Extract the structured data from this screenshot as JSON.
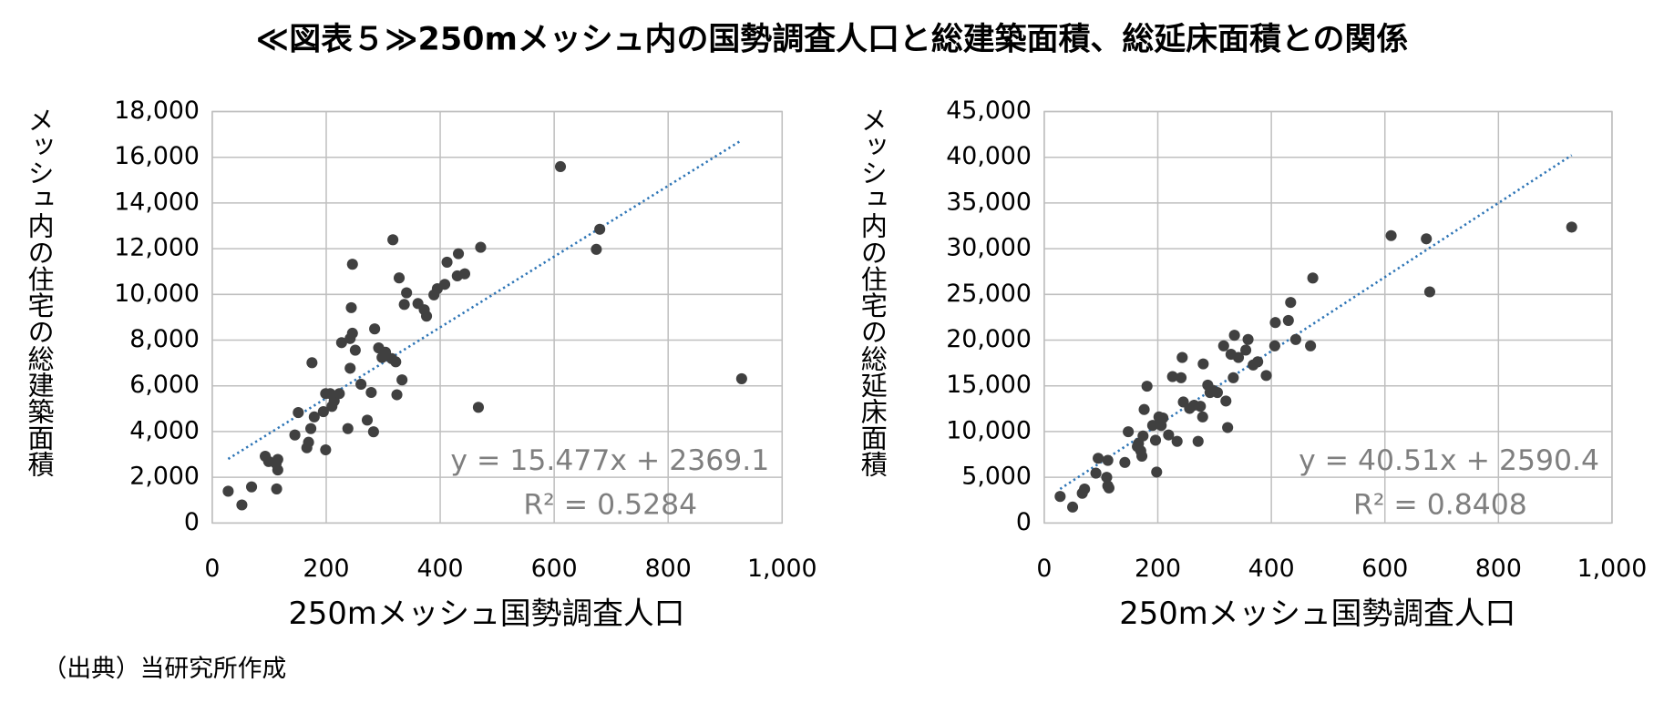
{
  "title": "≪図表５≫250mメッシュ内の国勢調査人口と総建築面積、総延床面積との関係",
  "source": "（出典）当研究所作成",
  "chart_data": [
    {
      "type": "scatter",
      "x_label": "250mメッシュ国勢調査人口",
      "y_label": "メッシュ内の住宅の総建築面積",
      "color": "#404040",
      "grid": true,
      "xlim": [
        0,
        1000
      ],
      "xticks": [
        0,
        200,
        400,
        600,
        800,
        {
          "value": 1000,
          "label": "1,000"
        }
      ],
      "ylim": [
        0,
        18000
      ],
      "yticks": [
        0,
        {
          "value": 2000,
          "label": "2,000"
        },
        {
          "value": 4000,
          "label": "4,000"
        },
        {
          "value": 6000,
          "label": "6,000"
        },
        {
          "value": 8000,
          "label": "8,000"
        },
        {
          "value": 10000,
          "label": "10,000"
        },
        {
          "value": 12000,
          "label": "12,000"
        },
        {
          "value": 14000,
          "label": "14,000"
        },
        {
          "value": 16000,
          "label": "16,000"
        },
        {
          "value": 18000,
          "label": "18,000"
        }
      ],
      "x": [
        28,
        52,
        69,
        93,
        99,
        112,
        115,
        113,
        115,
        145,
        151,
        166,
        169,
        173,
        175,
        179,
        195,
        199,
        199,
        207,
        210,
        214,
        223,
        227,
        238,
        242,
        242,
        244,
        246,
        246,
        251,
        261,
        272,
        279,
        283,
        285,
        292,
        298,
        304,
        315,
        322,
        317,
        324,
        328,
        333,
        337,
        341,
        361,
        372,
        376,
        389,
        395,
        408,
        412,
        432,
        430,
        443,
        467,
        471,
        611,
        674,
        680,
        929
      ],
      "values": [
        1390,
        790,
        1580,
        2920,
        2690,
        2600,
        2320,
        1490,
        2780,
        3850,
        4830,
        3290,
        3530,
        4130,
        7010,
        4640,
        4870,
        3200,
        5660,
        5660,
        5100,
        5340,
        5660,
        7890,
        4130,
        6770,
        8070,
        9420,
        8300,
        11320,
        7560,
        6070,
        4500,
        5710,
        3990,
        8490,
        7660,
        7240,
        7470,
        7190,
        7050,
        12390,
        5610,
        10720,
        6260,
        9560,
        10070,
        9600,
        9330,
        9050,
        9980,
        10250,
        10440,
        11410,
        11780,
        10810,
        10900,
        5060,
        12060,
        15590,
        11970,
        12850,
        6310
      ],
      "trendline": {
        "color": "#2e75b6",
        "slope": 15.477,
        "intercept": 2369.1,
        "label": "y = 15.477x + 2369.1",
        "r2": 0.5284,
        "r2_label": "R² = 0.5284"
      }
    },
    {
      "type": "scatter",
      "x_label": "250mメッシュ国勢調査人口",
      "y_label": "メッシュ内の住宅の総延床面積",
      "color": "#404040",
      "grid": true,
      "xlim": [
        0,
        1000
      ],
      "xticks": [
        0,
        200,
        400,
        600,
        800,
        {
          "value": 1000,
          "label": "1,000"
        }
      ],
      "ylim": [
        0,
        45000
      ],
      "yticks": [
        0,
        {
          "value": 5000,
          "label": "5,000"
        },
        {
          "value": 10000,
          "label": "10,000"
        },
        {
          "value": 15000,
          "label": "15,000"
        },
        {
          "value": 20000,
          "label": "20,000"
        },
        {
          "value": 25000,
          "label": "25,000"
        },
        {
          "value": 30000,
          "label": "30,000"
        },
        {
          "value": 35000,
          "label": "35,000"
        },
        {
          "value": 40000,
          "label": "40,000"
        },
        {
          "value": 45000,
          "label": "45,000"
        }
      ],
      "x": [
        28,
        50,
        67,
        71,
        91,
        95,
        112,
        110,
        112,
        114,
        142,
        148,
        164,
        166,
        170,
        172,
        174,
        176,
        181,
        191,
        196,
        198,
        202,
        206,
        209,
        219,
        226,
        234,
        241,
        243,
        245,
        256,
        264,
        271,
        275,
        279,
        280,
        288,
        292,
        297,
        305,
        316,
        320,
        323,
        329,
        333,
        335,
        342,
        355,
        359,
        368,
        376,
        391,
        406,
        407,
        430,
        434,
        443,
        469,
        473,
        611,
        673,
        679,
        929
      ],
      "values": [
        2900,
        1740,
        3250,
        3710,
        5450,
        7080,
        6850,
        5000,
        4060,
        3830,
        6620,
        9980,
        8360,
        8700,
        7890,
        7310,
        9520,
        12410,
        14960,
        10670,
        9050,
        5570,
        11600,
        10670,
        11480,
        9630,
        16010,
        8930,
        15890,
        18100,
        13230,
        12530,
        12880,
        8930,
        12760,
        11600,
        17400,
        15080,
        14270,
        14500,
        14270,
        19370,
        13340,
        10440,
        18450,
        15890,
        20530,
        18100,
        18910,
        20070,
        17280,
        17630,
        16130,
        19370,
        21920,
        22150,
        24120,
        20070,
        19370,
        26790,
        31430,
        31080,
        25280,
        32360
      ],
      "trendline": {
        "color": "#2e75b6",
        "slope": 40.51,
        "intercept": 2590.4,
        "label": "y = 40.51x + 2590.4",
        "r2": 0.8408,
        "r2_label": "R² = 0.8408"
      }
    }
  ]
}
